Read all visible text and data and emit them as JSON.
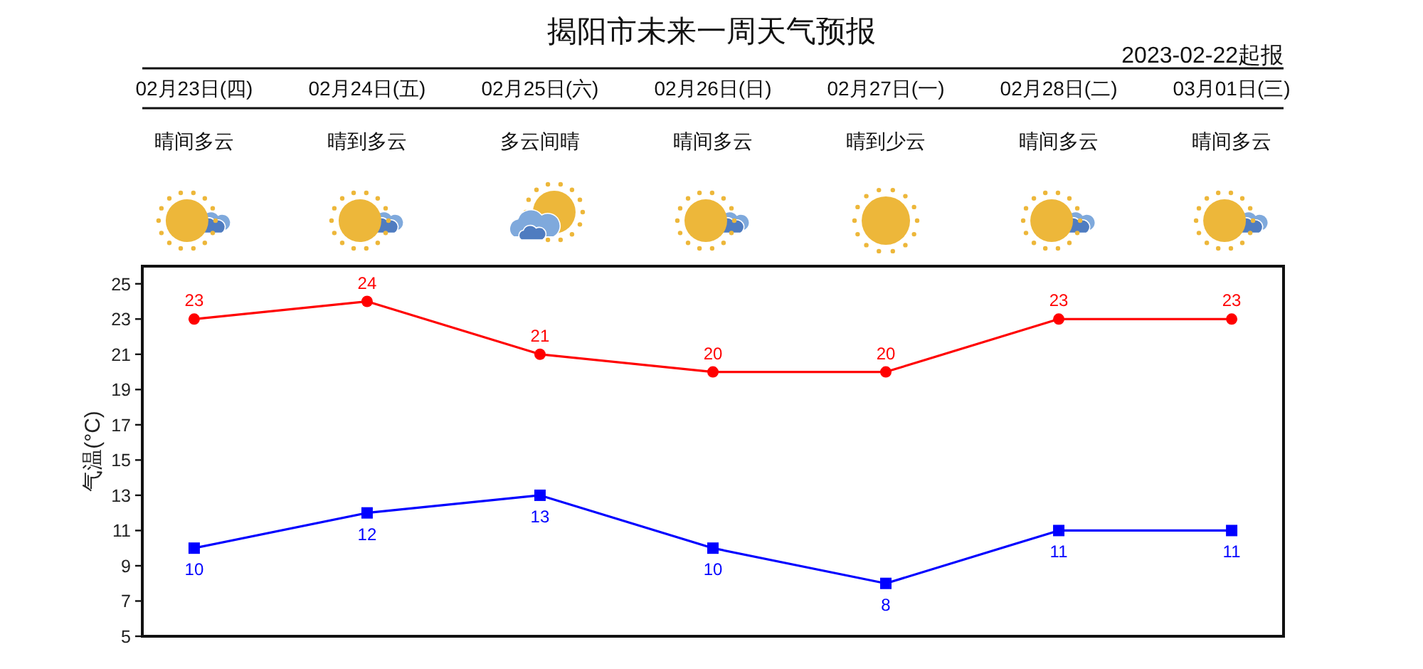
{
  "chart_data": {
    "type": "line",
    "title": "揭阳市未来一周天气预报",
    "subtitle": "2023-02-22起报",
    "ylabel": "气温(°C)",
    "categories": [
      null,
      null,
      null,
      null,
      null,
      null,
      null
    ],
    "annotations": [
      "02月23日(四)",
      "02月24日(五)",
      "02月25日(六)",
      "02月26日(日)",
      "02月27日(一)",
      "02月28日(二)",
      "03月01日(三)",
      "晴间多云",
      "晴到多云",
      "多云间晴",
      "晴间多云",
      "晴到少云",
      "晴间多云",
      "晴间多云"
    ],
    "series": [
      {
        "color": "#ff0000",
        "values": [
          23,
          24,
          21,
          20,
          20,
          23,
          23
        ]
      },
      {
        "color": "#0000ff",
        "marker": "square",
        "values": [
          10,
          12,
          13,
          10,
          8,
          11,
          11
        ]
      }
    ],
    "marker": "circle",
    "line_style": "solid",
    "data_labels": true,
    "tick_labels": "y",
    "ylim": [
      5,
      26
    ],
    "yticks": [
      5,
      7,
      9,
      11,
      13,
      15,
      17,
      19,
      21,
      23,
      25
    ]
  }
}
